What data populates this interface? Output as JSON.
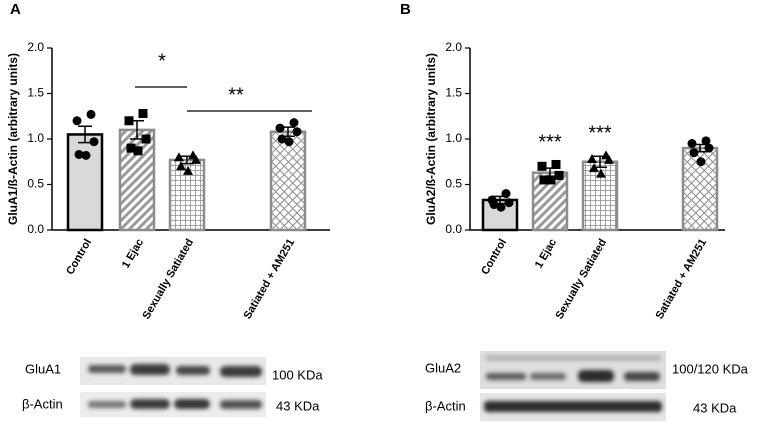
{
  "chart_data": [
    {
      "type": "bar",
      "panel": "A",
      "y_label": "GluA1/ß-Actin (arbitrary units)",
      "categories": [
        "Control",
        "1 Ejac",
        "Sexually Satiated",
        "Satiated + AM251"
      ],
      "values": [
        1.05,
        1.1,
        0.77,
        1.08
      ],
      "errors": [
        0.09,
        0.1,
        0.04,
        0.05
      ],
      "points": [
        [
          1.27,
          1.2,
          0.97,
          0.83,
          0.82
        ],
        [
          1.28,
          1.2,
          1.0,
          0.9,
          0.87
        ],
        [
          0.82,
          0.8,
          0.77,
          0.7,
          0.65
        ],
        [
          1.18,
          1.12,
          1.08,
          1.0,
          0.97
        ]
      ],
      "bar_styles": [
        "solid",
        "diagonal",
        "grid",
        "crosshatch"
      ],
      "edge_colors": [
        "#000000",
        "#8c8c8c",
        "#8c8c8c",
        "#8c8c8c"
      ],
      "markers": [
        "circle",
        "square",
        "triangle",
        "circle"
      ],
      "ylim": [
        0,
        2
      ],
      "yticks": [
        {
          "value": 0,
          "label": "0.0"
        },
        0.5,
        {
          "value": 1,
          "label": "1.0"
        },
        1.5,
        {
          "value": 2,
          "label": "2.0"
        }
      ],
      "annotations": [
        "*",
        "**"
      ],
      "blot": [
        {
          "label": "GluA1",
          "size": "100 KDa"
        },
        {
          "label": "β-Actin",
          "size": "43 KDa"
        }
      ]
    },
    {
      "type": "bar",
      "panel": "B",
      "y_label": "GluA2/ß-Actin (arbitrary units)",
      "categories": [
        "Control",
        "1 Ejac",
        "Sexually Satiated",
        "Satiated + AM251"
      ],
      "values": [
        0.33,
        0.63,
        0.75,
        0.9
      ],
      "errors": [
        0.04,
        0.05,
        0.06,
        0.04
      ],
      "points": [
        [
          0.4,
          0.33,
          0.3,
          0.28,
          0.25
        ],
        [
          0.72,
          0.7,
          0.6,
          0.55,
          0.55
        ],
        [
          0.82,
          0.78,
          0.77,
          0.68,
          0.62
        ],
        [
          0.98,
          0.95,
          0.9,
          0.85,
          0.75
        ]
      ],
      "bar_styles": [
        "solid",
        "diagonal",
        "grid",
        "crosshatch"
      ],
      "edge_colors": [
        "#000000",
        "#8c8c8c",
        "#8c8c8c",
        "#8c8c8c"
      ],
      "markers": [
        "circle",
        "square",
        "triangle",
        "circle"
      ],
      "ylim": [
        0,
        2
      ],
      "yticks": [
        {
          "value": 0,
          "label": "0.0"
        },
        0.5,
        {
          "value": 1,
          "label": "1.0"
        },
        1.5,
        {
          "value": 2,
          "label": "2.0"
        }
      ],
      "annotations": [
        "***",
        "***"
      ],
      "blot": [
        {
          "label": "GluA2",
          "size": "100/120 KDa"
        },
        {
          "label": "β-Actin",
          "size": "43 KDa"
        }
      ]
    }
  ]
}
